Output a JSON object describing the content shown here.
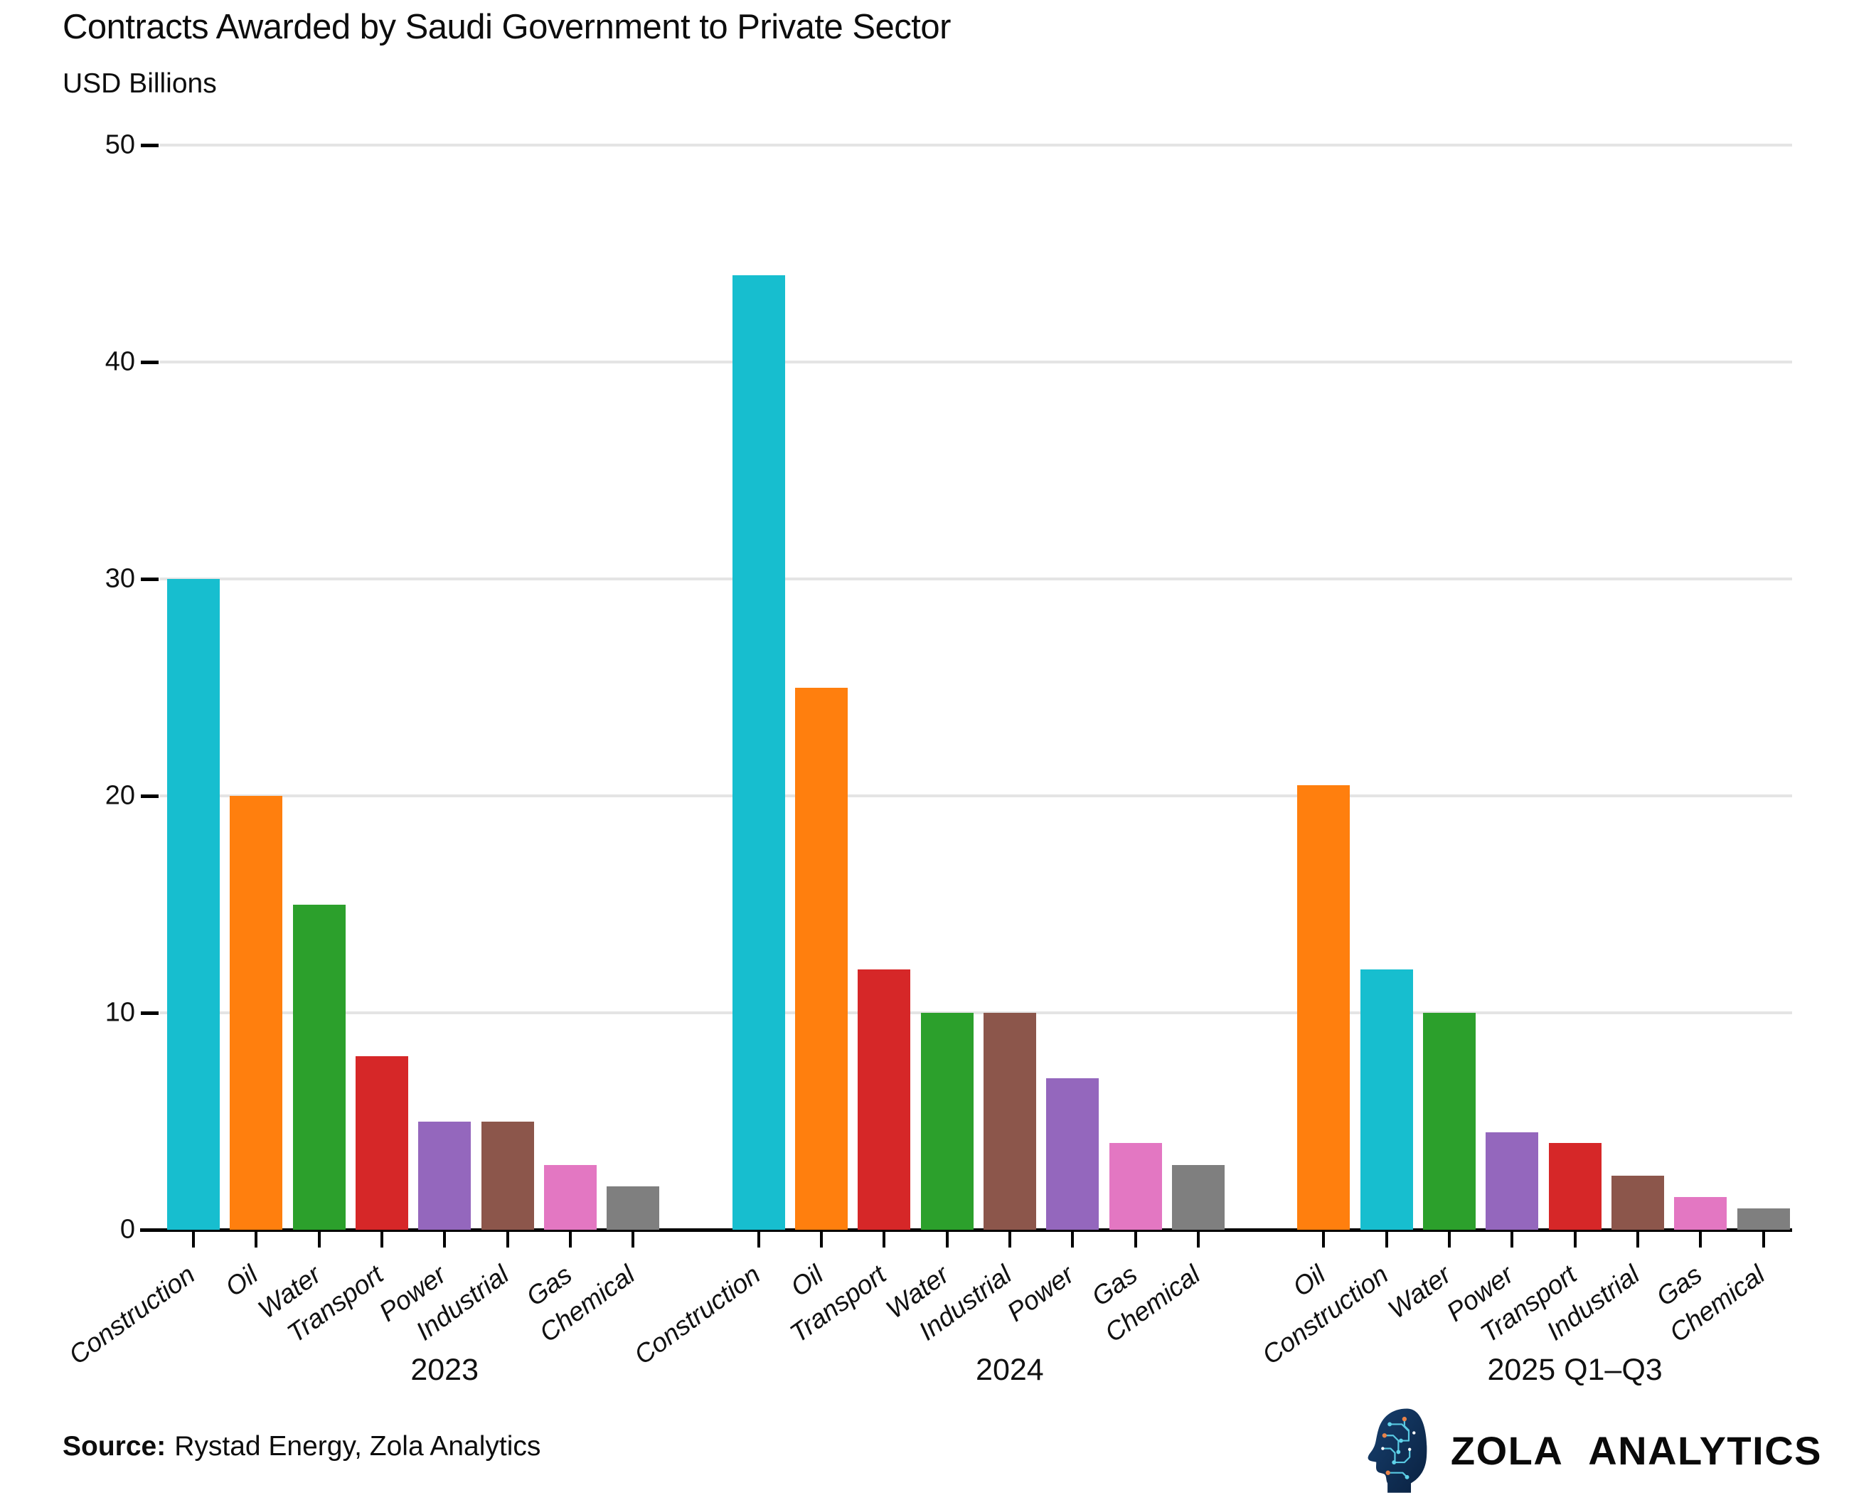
{
  "header": {
    "title": "Contracts Awarded by Saudi Government to Private Sector",
    "subtitle": "USD Billions"
  },
  "footer": {
    "source_label": "Source:",
    "source_text": "Rystad Energy, Zola Analytics",
    "brand_name": "ZOLA ANALYTICS",
    "brand_icon": "circuit-head-icon"
  },
  "chart_data": {
    "type": "bar",
    "title": "Contracts Awarded by Saudi Government to Private Sector",
    "subtitle": "USD Billions",
    "ylabel": "USD Billions",
    "ylim": [
      0,
      50
    ],
    "yticks": [
      0,
      10,
      20,
      30,
      40,
      50
    ],
    "grid": true,
    "legend": "none",
    "bar_colors": {
      "Construction": "#17becf",
      "Oil": "#ff7f0e",
      "Water": "#2ca02c",
      "Transport": "#d62728",
      "Power": "#9467bd",
      "Industrial": "#8c564b",
      "Gas": "#e377c2",
      "Chemical": "#7f7f7f"
    },
    "groups": [
      {
        "label": "2023",
        "categories": [
          "Construction",
          "Oil",
          "Water",
          "Transport",
          "Power",
          "Industrial",
          "Gas",
          "Chemical"
        ],
        "values": [
          30,
          20,
          15,
          8,
          5,
          5,
          3,
          2
        ]
      },
      {
        "label": "2024",
        "categories": [
          "Construction",
          "Oil",
          "Transport",
          "Water",
          "Industrial",
          "Power",
          "Gas",
          "Chemical"
        ],
        "values": [
          44,
          25,
          12,
          10,
          10,
          7,
          4,
          3
        ]
      },
      {
        "label": "2025 Q1–Q3",
        "categories": [
          "Oil",
          "Construction",
          "Water",
          "Power",
          "Transport",
          "Industrial",
          "Gas",
          "Chemical"
        ],
        "values": [
          20.5,
          12,
          10,
          4.5,
          4,
          2.5,
          1.5,
          1
        ]
      }
    ]
  }
}
